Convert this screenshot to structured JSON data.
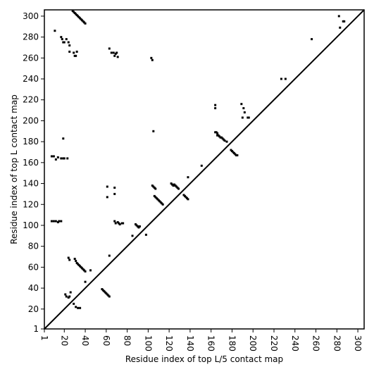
{
  "chart_data": {
    "type": "scatter",
    "title": "",
    "xlabel": "Residue index of top L/5 contact map",
    "ylabel": "Residue index of top L contact map",
    "xlim": [
      1,
      306
    ],
    "ylim": [
      1,
      306
    ],
    "xticks": [
      1,
      20,
      40,
      60,
      80,
      100,
      120,
      140,
      160,
      180,
      200,
      220,
      240,
      260,
      280,
      300
    ],
    "yticks": [
      1,
      20,
      40,
      60,
      80,
      100,
      120,
      140,
      160,
      180,
      200,
      220,
      240,
      260,
      280,
      300
    ],
    "grid": false,
    "diagonal": true,
    "series": [
      {
        "marker": "square",
        "color": "#000000",
        "points": [
          [
            8,
            166
          ],
          [
            10,
            166
          ],
          [
            12,
            163
          ],
          [
            14,
            165
          ],
          [
            17,
            164
          ],
          [
            19,
            164
          ],
          [
            20,
            164
          ],
          [
            23,
            164
          ],
          [
            8,
            104
          ],
          [
            10,
            104
          ],
          [
            12,
            104
          ],
          [
            14,
            103
          ],
          [
            15,
            104
          ],
          [
            17,
            104
          ],
          [
            11,
            286
          ],
          [
            17,
            280
          ],
          [
            18,
            278
          ],
          [
            19,
            275
          ],
          [
            20,
            275
          ],
          [
            22,
            278
          ],
          [
            24,
            275
          ],
          [
            25,
            272
          ],
          [
            25,
            266
          ],
          [
            29,
            265
          ],
          [
            30,
            262
          ],
          [
            31,
            262
          ],
          [
            32,
            266
          ],
          [
            28,
            305
          ],
          [
            29,
            304
          ],
          [
            30,
            303
          ],
          [
            31,
            302
          ],
          [
            32,
            301
          ],
          [
            33,
            300
          ],
          [
            34,
            299
          ],
          [
            35,
            298
          ],
          [
            36,
            297
          ],
          [
            37,
            296
          ],
          [
            38,
            295
          ],
          [
            39,
            294
          ],
          [
            40,
            293
          ],
          [
            19,
            183
          ],
          [
            21,
            34
          ],
          [
            22,
            32
          ],
          [
            24,
            31
          ],
          [
            25,
            32
          ],
          [
            26,
            36
          ],
          [
            24,
            69
          ],
          [
            25,
            67
          ],
          [
            30,
            68
          ],
          [
            31,
            66
          ],
          [
            32,
            64
          ],
          [
            33,
            63
          ],
          [
            34,
            62
          ],
          [
            35,
            61
          ],
          [
            36,
            60
          ],
          [
            37,
            59
          ],
          [
            38,
            58
          ],
          [
            39,
            57
          ],
          [
            40,
            56
          ],
          [
            29,
            25
          ],
          [
            31,
            22
          ],
          [
            33,
            21
          ],
          [
            35,
            21
          ],
          [
            40,
            46
          ],
          [
            45,
            57
          ],
          [
            56,
            39
          ],
          [
            57,
            38
          ],
          [
            58,
            37
          ],
          [
            59,
            36
          ],
          [
            60,
            35
          ],
          [
            61,
            34
          ],
          [
            62,
            33
          ],
          [
            63,
            32
          ],
          [
            61,
            137
          ],
          [
            61,
            127
          ],
          [
            63,
            269
          ],
          [
            63,
            71
          ],
          [
            65,
            265
          ],
          [
            67,
            265
          ],
          [
            68,
            262
          ],
          [
            69,
            264
          ],
          [
            70,
            265
          ],
          [
            71,
            261
          ],
          [
            68,
            136
          ],
          [
            68,
            130
          ],
          [
            68,
            104
          ],
          [
            69,
            102
          ],
          [
            71,
            103
          ],
          [
            72,
            102
          ],
          [
            73,
            101
          ],
          [
            75,
            102
          ],
          [
            76,
            102
          ],
          [
            85,
            90
          ],
          [
            88,
            101
          ],
          [
            89,
            100
          ],
          [
            90,
            99
          ],
          [
            91,
            98
          ],
          [
            92,
            99
          ],
          [
            98,
            91
          ],
          [
            103,
            260
          ],
          [
            104,
            258
          ],
          [
            105,
            190
          ],
          [
            104,
            138
          ],
          [
            105,
            137
          ],
          [
            106,
            136
          ],
          [
            107,
            135
          ],
          [
            106,
            128
          ],
          [
            107,
            127
          ],
          [
            108,
            126
          ],
          [
            109,
            125
          ],
          [
            110,
            124
          ],
          [
            111,
            123
          ],
          [
            112,
            122
          ],
          [
            113,
            121
          ],
          [
            114,
            120
          ],
          [
            122,
            140
          ],
          [
            123,
            139
          ],
          [
            124,
            138
          ],
          [
            125,
            139
          ],
          [
            126,
            138
          ],
          [
            127,
            137
          ],
          [
            128,
            136
          ],
          [
            129,
            135
          ],
          [
            134,
            129
          ],
          [
            135,
            128
          ],
          [
            136,
            127
          ],
          [
            137,
            126
          ],
          [
            138,
            125
          ],
          [
            138,
            146
          ],
          [
            151,
            157
          ],
          [
            164,
            215
          ],
          [
            164,
            212
          ],
          [
            164,
            189
          ],
          [
            165,
            189
          ],
          [
            166,
            188
          ],
          [
            166,
            186
          ],
          [
            167,
            186
          ],
          [
            168,
            185
          ],
          [
            169,
            184
          ],
          [
            170,
            184
          ],
          [
            171,
            183
          ],
          [
            172,
            182
          ],
          [
            173,
            181
          ],
          [
            175,
            180
          ],
          [
            179,
            172
          ],
          [
            180,
            171
          ],
          [
            181,
            170
          ],
          [
            182,
            169
          ],
          [
            183,
            168
          ],
          [
            184,
            167
          ],
          [
            185,
            167
          ],
          [
            189,
            216
          ],
          [
            190,
            203
          ],
          [
            191,
            212
          ],
          [
            192,
            208
          ],
          [
            195,
            203
          ],
          [
            196,
            203
          ],
          [
            227,
            240
          ],
          [
            231,
            240
          ],
          [
            256,
            278
          ],
          [
            282,
            300
          ],
          [
            283,
            289
          ],
          [
            286,
            295
          ],
          [
            287,
            295
          ]
        ]
      }
    ]
  }
}
